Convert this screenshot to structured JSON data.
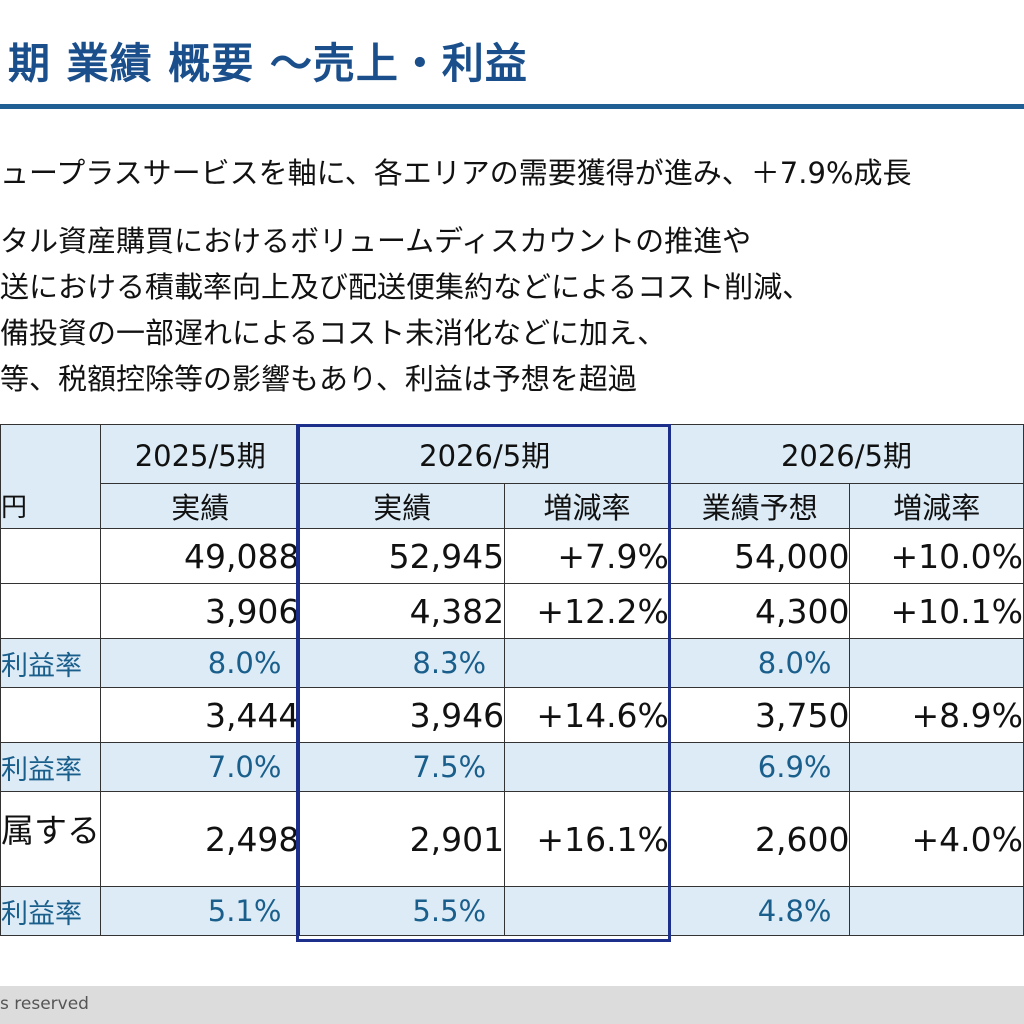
{
  "title": "期 業績 概要 ～売上・利益",
  "bullets": [
    "ュープラスサービスを軸に、各エリアの需要獲得が進み、＋7.9%成長",
    "タル資産購買におけるボリュームディスカウントの推進や",
    "送における積載率向上及び配送便集約などによるコスト削減、",
    "備投資の一部遅れによるコスト未消化などに加え、",
    "等、税額控除等の影響もあり、利益は予想を超過"
  ],
  "table": {
    "unit_label": "円",
    "periods": [
      "2025/5期",
      "2026/5期",
      "2026/5期"
    ],
    "subheaders": [
      "実績",
      "実績",
      "増減率",
      "業績予想",
      "増減率"
    ],
    "rows": [
      {
        "label": "",
        "type": "data",
        "values": [
          "49,088",
          "52,945",
          "+7.9%",
          "54,000",
          "+10.0%"
        ]
      },
      {
        "label": "",
        "type": "data",
        "values": [
          "3,906",
          "4,382",
          "+12.2%",
          "4,300",
          "+10.1%"
        ]
      },
      {
        "label": "利益率",
        "type": "ratio",
        "values": [
          "8.0%",
          "8.3%",
          "",
          "8.0%",
          ""
        ]
      },
      {
        "label": "",
        "type": "data",
        "values": [
          "3,444",
          "3,946",
          "+14.6%",
          "3,750",
          "+8.9%"
        ]
      },
      {
        "label": "利益率",
        "type": "ratio",
        "values": [
          "7.0%",
          "7.5%",
          "",
          "6.9%",
          ""
        ]
      },
      {
        "label": "属する",
        "type": "data",
        "values": [
          "2,498",
          "2,901",
          "+16.1%",
          "2,600",
          "+4.0%"
        ]
      },
      {
        "label": "利益率",
        "type": "ratio",
        "values": [
          "5.1%",
          "5.5%",
          "",
          "4.8%",
          ""
        ]
      }
    ]
  },
  "footer": "s reserved",
  "colors": {
    "title": "#1a4f8c",
    "rule": "#1f5f94",
    "header_bg": "#dcebf6",
    "ratio_text": "#1a5f8c",
    "highlight_border": "#1c2f8a",
    "footer_bg": "#dcdcdc"
  }
}
